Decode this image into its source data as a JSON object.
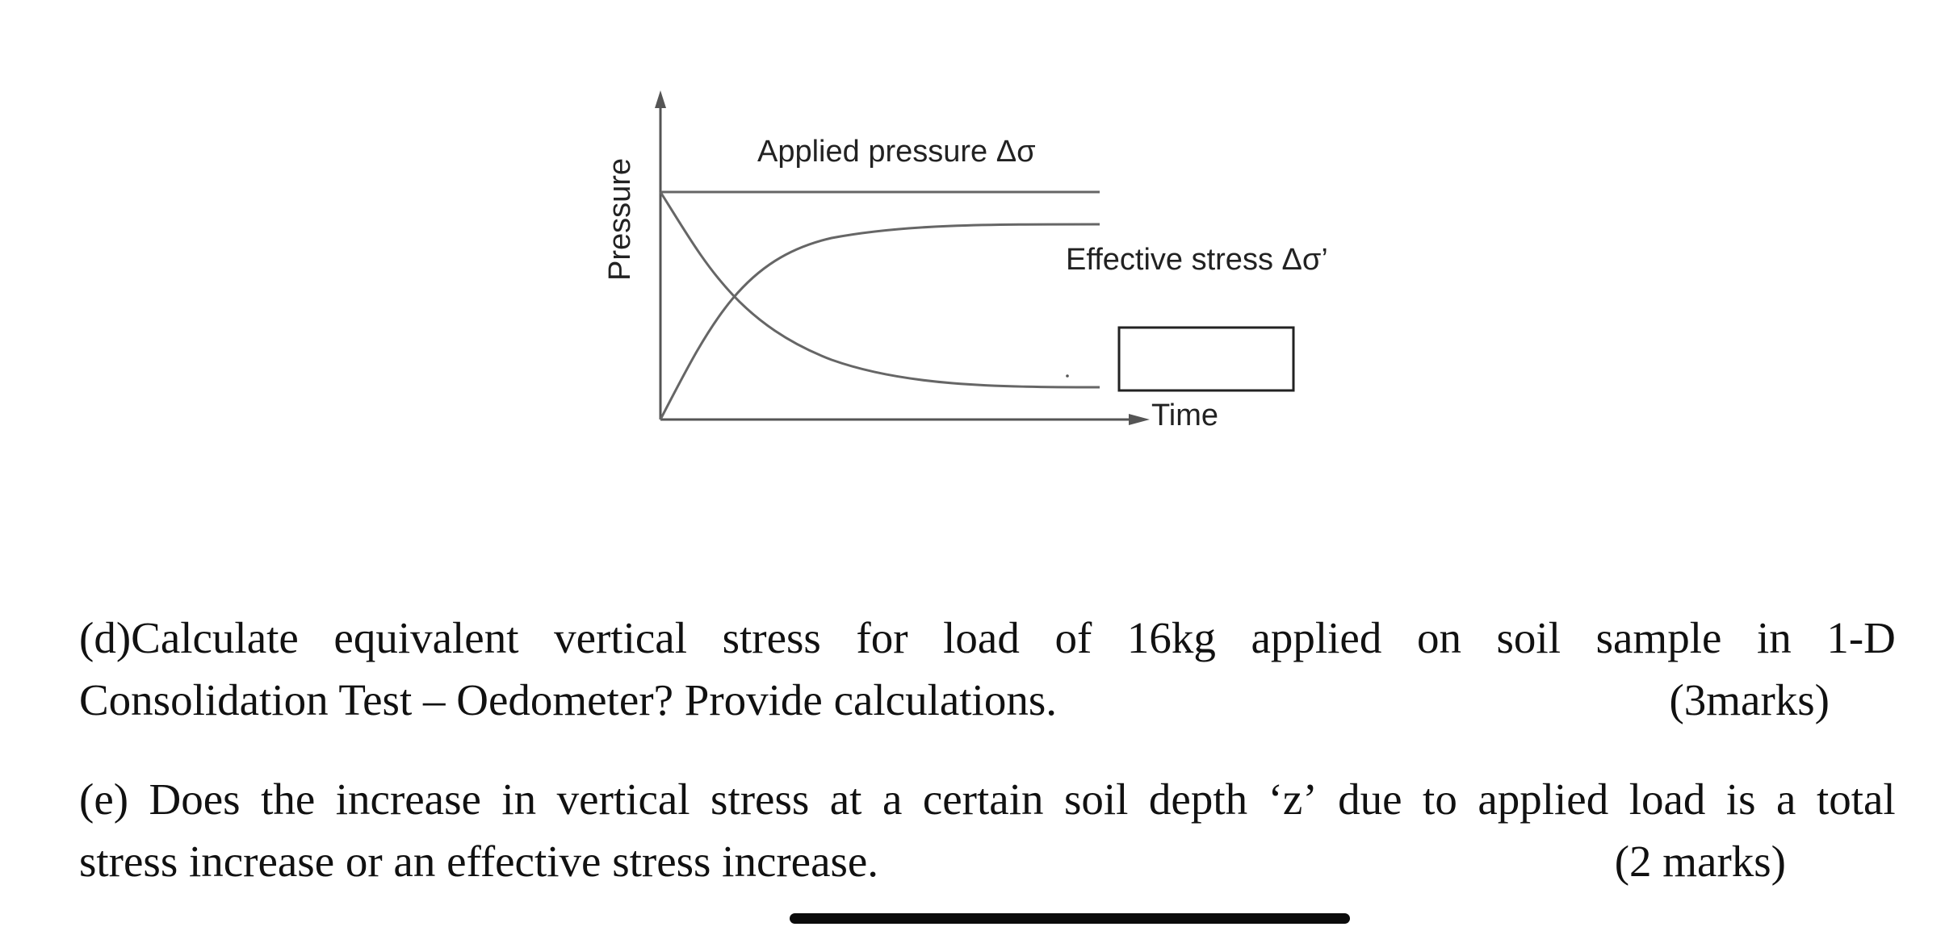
{
  "figure": {
    "y_axis_label": "Pressure",
    "x_axis_label": "Time",
    "applied_pressure_label": "Applied pressure Δσ",
    "effective_stress_label": "Effective stress Δσ’",
    "blank_answer_box": ""
  },
  "questions": [
    {
      "id": "d",
      "line1_words": [
        "(d)Calculate",
        "equivalent",
        "vertical",
        "stress",
        "for",
        "load",
        "of",
        "16kg",
        "applied",
        "on",
        "soil",
        "sample",
        "in",
        "1-D"
      ],
      "line2_text": "Consolidation Test – Oedometer? Provide calculations.",
      "marks": "(3marks)"
    },
    {
      "id": "e",
      "line1_words": [
        "(e)",
        "Does",
        "the",
        "increase",
        "in",
        "vertical",
        "stress",
        "at",
        "a",
        "certain",
        "soil",
        "depth",
        "‘z’",
        "due",
        "to",
        "applied",
        "load",
        "is",
        "a",
        "total"
      ],
      "line2_text": "stress increase or an effective stress increase.",
      "marks": "(2 marks)"
    }
  ]
}
